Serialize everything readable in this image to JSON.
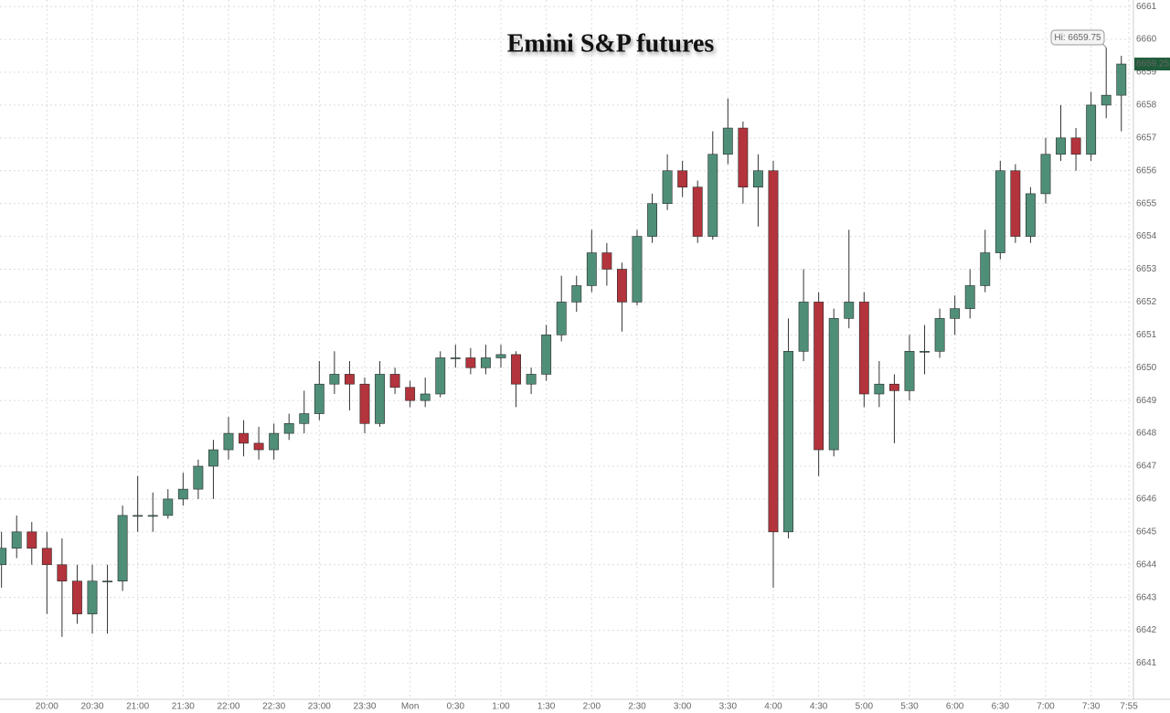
{
  "chart_data": {
    "type": "candlestick",
    "title": "Emini S&P futures",
    "high_annotation": "Hi: 6659.75",
    "up_color": "#4f8f78",
    "down_color": "#b3343c",
    "grid": true,
    "x": [
      -30,
      -20,
      -10,
      0,
      10,
      20,
      30,
      40,
      50,
      60,
      70,
      80,
      90,
      100,
      110,
      120,
      130,
      140,
      150,
      160,
      170,
      180,
      190,
      200,
      210,
      220,
      230,
      240,
      250,
      260,
      270,
      280,
      290,
      300,
      310,
      320,
      330,
      340,
      350,
      360,
      370,
      380,
      390,
      400,
      410,
      420,
      430,
      440,
      450,
      460,
      470,
      480,
      490,
      500,
      510,
      520,
      530,
      540,
      550,
      560,
      570,
      580,
      590,
      600,
      610,
      620,
      630,
      640,
      650,
      660,
      670,
      680,
      690,
      700,
      710
    ],
    "open": [
      6644,
      6644.5,
      6645,
      6644.5,
      6644,
      6643.5,
      6642.5,
      6643.5,
      6643.5,
      6645.5,
      6645.5,
      6645.5,
      6646,
      6646.3,
      6647,
      6647.5,
      6648,
      6647.7,
      6647.5,
      6648,
      6648.3,
      6648.6,
      6649.5,
      6649.8,
      6649.5,
      6648.3,
      6649.8,
      6649.4,
      6649,
      6649.2,
      6650.3,
      6650.3,
      6650,
      6650.3,
      6650.4,
      6649.5,
      6649.8,
      6651,
      6652,
      6652.5,
      6653.5,
      6653,
      6652,
      6654,
      6655,
      6656,
      6655.5,
      6654,
      6656.5,
      6657.3,
      6655.5,
      6656,
      6645,
      6650.5,
      6652,
      6647.5,
      6651.5,
      6652,
      6649.2,
      6649.5,
      6649.3,
      6650.5,
      6650.5,
      6651.5,
      6651.8,
      6652.5,
      6653.5,
      6656,
      6654,
      6655.3,
      6656.5,
      6657,
      6656.5,
      6658,
      6658.3
    ],
    "high": [
      6645,
      6645.5,
      6645.3,
      6645,
      6644.8,
      6644,
      6644,
      6644,
      6645.8,
      6646.7,
      6646.2,
      6646.3,
      6646.8,
      6647.2,
      6647.8,
      6648.5,
      6648.4,
      6648.2,
      6648.3,
      6648.6,
      6649.3,
      6650.2,
      6650.5,
      6650.2,
      6649.7,
      6650.2,
      6650,
      6649.6,
      6649.7,
      6650.5,
      6650.7,
      6650.6,
      6650.7,
      6650.7,
      6650.5,
      6650,
      6651.3,
      6652.8,
      6652.8,
      6654.2,
      6653.8,
      6653.2,
      6654.2,
      6655.3,
      6656.5,
      6656.3,
      6655.7,
      6657.2,
      6658.2,
      6657.5,
      6656.5,
      6656.3,
      6651.5,
      6653,
      6652.3,
      6651.8,
      6654.2,
      6652.3,
      6650.2,
      6649.8,
      6651,
      6651.3,
      6651.8,
      6652.2,
      6653,
      6654.2,
      6656.3,
      6656.2,
      6655.5,
      6657,
      6658,
      6657.3,
      6658.4,
      6659.75,
      6659.5
    ],
    "low": [
      6643.3,
      6644.2,
      6644,
      6642.5,
      6641.8,
      6642.2,
      6641.9,
      6641.9,
      6643.2,
      6645,
      6645,
      6645.4,
      6645.8,
      6646,
      6646,
      6647.2,
      6647.3,
      6647.2,
      6647.2,
      6647.8,
      6648,
      6648.4,
      6649.2,
      6648.7,
      6648,
      6648.2,
      6649.2,
      6648.8,
      6648.8,
      6649.1,
      6650,
      6649.8,
      6649.8,
      6650,
      6648.8,
      6649.2,
      6649.6,
      6650.8,
      6651.7,
      6652.3,
      6652.5,
      6651.1,
      6651.9,
      6653.8,
      6654.8,
      6655.2,
      6653.8,
      6653.9,
      6656.2,
      6655,
      6654.3,
      6643.3,
      6644.8,
      6650.2,
      6646.7,
      6647.3,
      6651.2,
      6648.8,
      6648.8,
      6647.7,
      6649,
      6649.8,
      6650.3,
      6651,
      6651.5,
      6652.3,
      6653.3,
      6653.8,
      6653.8,
      6655,
      6656.3,
      6656,
      6656.3,
      6657.6,
      6657.2
    ],
    "close": [
      6644.5,
      6645,
      6644.5,
      6644,
      6643.5,
      6642.5,
      6643.5,
      6643.5,
      6645.5,
      6645.5,
      6645.5,
      6646,
      6646.3,
      6647,
      6647.5,
      6648,
      6647.7,
      6647.5,
      6648,
      6648.3,
      6648.6,
      6649.5,
      6649.8,
      6649.5,
      6648.3,
      6649.8,
      6649.4,
      6649,
      6649.2,
      6650.3,
      6650.3,
      6650,
      6650.3,
      6650.4,
      6649.5,
      6649.8,
      6651,
      6652,
      6652.5,
      6653.5,
      6653,
      6652,
      6654,
      6655,
      6656,
      6655.5,
      6654,
      6656.5,
      6657.3,
      6655.5,
      6656,
      6645,
      6650.5,
      6652,
      6647.5,
      6651.5,
      6652,
      6649.2,
      6649.5,
      6649.3,
      6650.5,
      6650.5,
      6651.5,
      6651.8,
      6652.5,
      6653.5,
      6656,
      6654,
      6655.3,
      6656.5,
      6657,
      6656.5,
      6658,
      6658.3,
      6659.25
    ],
    "xlim": [
      -31,
      718
    ],
    "xticks": [
      {
        "value": 0,
        "label": "20:00"
      },
      {
        "value": 30,
        "label": "20:30"
      },
      {
        "value": 60,
        "label": "21:00"
      },
      {
        "value": 90,
        "label": "21:30"
      },
      {
        "value": 120,
        "label": "22:00"
      },
      {
        "value": 150,
        "label": "22:30"
      },
      {
        "value": 180,
        "label": "23:00"
      },
      {
        "value": 210,
        "label": "23:30"
      },
      {
        "value": 240,
        "label": "Mon"
      },
      {
        "value": 270,
        "label": "0:30"
      },
      {
        "value": 300,
        "label": "1:00"
      },
      {
        "value": 330,
        "label": "1:30"
      },
      {
        "value": 360,
        "label": "2:00"
      },
      {
        "value": 390,
        "label": "2:30"
      },
      {
        "value": 420,
        "label": "3:00"
      },
      {
        "value": 450,
        "label": "3:30"
      },
      {
        "value": 480,
        "label": "4:00"
      },
      {
        "value": 510,
        "label": "4:30"
      },
      {
        "value": 540,
        "label": "5:00"
      },
      {
        "value": 570,
        "label": "5:30"
      },
      {
        "value": 600,
        "label": "6:00"
      },
      {
        "value": 630,
        "label": "6:30"
      },
      {
        "value": 660,
        "label": "7:00"
      },
      {
        "value": 690,
        "label": "7:30"
      },
      {
        "value": 715,
        "label": "7:55"
      }
    ],
    "ylim": [
      6639.9,
      6661.2
    ],
    "yticks": [
      6641,
      6642,
      6643,
      6644,
      6645,
      6646,
      6647,
      6648,
      6649,
      6650,
      6651,
      6652,
      6653,
      6654,
      6655,
      6656,
      6657,
      6658,
      6659,
      6660,
      6661
    ]
  }
}
